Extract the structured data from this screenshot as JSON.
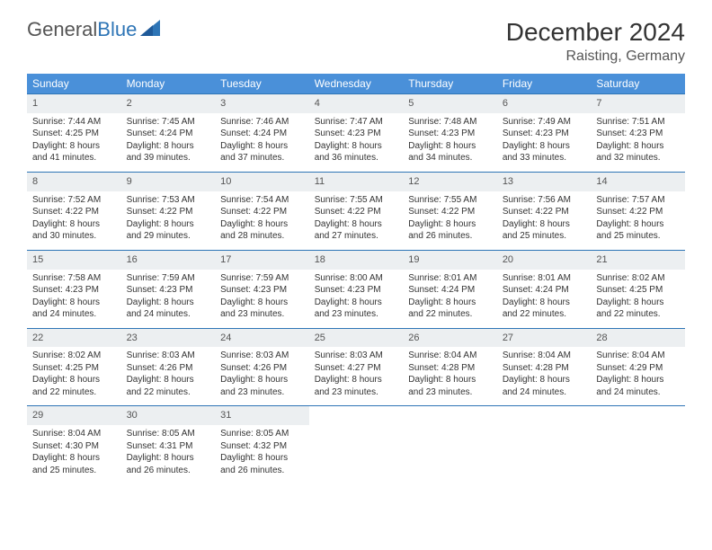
{
  "logo": {
    "text1": "General",
    "text2": "Blue"
  },
  "title": "December 2024",
  "location": "Raisting, Germany",
  "colors": {
    "header_bg": "#4a90d9",
    "header_text": "#ffffff",
    "daynum_bg": "#eceff1",
    "border": "#2e75b6",
    "logo_blue": "#2e75b6",
    "text": "#333333",
    "background": "#ffffff"
  },
  "days_of_week": [
    "Sunday",
    "Monday",
    "Tuesday",
    "Wednesday",
    "Thursday",
    "Friday",
    "Saturday"
  ],
  "layout": {
    "columns": 7,
    "rows": 5,
    "body_fontsize": 10,
    "header_fontsize": 12,
    "title_fontsize": 28,
    "location_fontsize": 16
  },
  "weeks": [
    [
      {
        "n": "1",
        "sr": "Sunrise: 7:44 AM",
        "ss": "Sunset: 4:25 PM",
        "dl1": "Daylight: 8 hours",
        "dl2": "and 41 minutes."
      },
      {
        "n": "2",
        "sr": "Sunrise: 7:45 AM",
        "ss": "Sunset: 4:24 PM",
        "dl1": "Daylight: 8 hours",
        "dl2": "and 39 minutes."
      },
      {
        "n": "3",
        "sr": "Sunrise: 7:46 AM",
        "ss": "Sunset: 4:24 PM",
        "dl1": "Daylight: 8 hours",
        "dl2": "and 37 minutes."
      },
      {
        "n": "4",
        "sr": "Sunrise: 7:47 AM",
        "ss": "Sunset: 4:23 PM",
        "dl1": "Daylight: 8 hours",
        "dl2": "and 36 minutes."
      },
      {
        "n": "5",
        "sr": "Sunrise: 7:48 AM",
        "ss": "Sunset: 4:23 PM",
        "dl1": "Daylight: 8 hours",
        "dl2": "and 34 minutes."
      },
      {
        "n": "6",
        "sr": "Sunrise: 7:49 AM",
        "ss": "Sunset: 4:23 PM",
        "dl1": "Daylight: 8 hours",
        "dl2": "and 33 minutes."
      },
      {
        "n": "7",
        "sr": "Sunrise: 7:51 AM",
        "ss": "Sunset: 4:23 PM",
        "dl1": "Daylight: 8 hours",
        "dl2": "and 32 minutes."
      }
    ],
    [
      {
        "n": "8",
        "sr": "Sunrise: 7:52 AM",
        "ss": "Sunset: 4:22 PM",
        "dl1": "Daylight: 8 hours",
        "dl2": "and 30 minutes."
      },
      {
        "n": "9",
        "sr": "Sunrise: 7:53 AM",
        "ss": "Sunset: 4:22 PM",
        "dl1": "Daylight: 8 hours",
        "dl2": "and 29 minutes."
      },
      {
        "n": "10",
        "sr": "Sunrise: 7:54 AM",
        "ss": "Sunset: 4:22 PM",
        "dl1": "Daylight: 8 hours",
        "dl2": "and 28 minutes."
      },
      {
        "n": "11",
        "sr": "Sunrise: 7:55 AM",
        "ss": "Sunset: 4:22 PM",
        "dl1": "Daylight: 8 hours",
        "dl2": "and 27 minutes."
      },
      {
        "n": "12",
        "sr": "Sunrise: 7:55 AM",
        "ss": "Sunset: 4:22 PM",
        "dl1": "Daylight: 8 hours",
        "dl2": "and 26 minutes."
      },
      {
        "n": "13",
        "sr": "Sunrise: 7:56 AM",
        "ss": "Sunset: 4:22 PM",
        "dl1": "Daylight: 8 hours",
        "dl2": "and 25 minutes."
      },
      {
        "n": "14",
        "sr": "Sunrise: 7:57 AM",
        "ss": "Sunset: 4:22 PM",
        "dl1": "Daylight: 8 hours",
        "dl2": "and 25 minutes."
      }
    ],
    [
      {
        "n": "15",
        "sr": "Sunrise: 7:58 AM",
        "ss": "Sunset: 4:23 PM",
        "dl1": "Daylight: 8 hours",
        "dl2": "and 24 minutes."
      },
      {
        "n": "16",
        "sr": "Sunrise: 7:59 AM",
        "ss": "Sunset: 4:23 PM",
        "dl1": "Daylight: 8 hours",
        "dl2": "and 24 minutes."
      },
      {
        "n": "17",
        "sr": "Sunrise: 7:59 AM",
        "ss": "Sunset: 4:23 PM",
        "dl1": "Daylight: 8 hours",
        "dl2": "and 23 minutes."
      },
      {
        "n": "18",
        "sr": "Sunrise: 8:00 AM",
        "ss": "Sunset: 4:23 PM",
        "dl1": "Daylight: 8 hours",
        "dl2": "and 23 minutes."
      },
      {
        "n": "19",
        "sr": "Sunrise: 8:01 AM",
        "ss": "Sunset: 4:24 PM",
        "dl1": "Daylight: 8 hours",
        "dl2": "and 22 minutes."
      },
      {
        "n": "20",
        "sr": "Sunrise: 8:01 AM",
        "ss": "Sunset: 4:24 PM",
        "dl1": "Daylight: 8 hours",
        "dl2": "and 22 minutes."
      },
      {
        "n": "21",
        "sr": "Sunrise: 8:02 AM",
        "ss": "Sunset: 4:25 PM",
        "dl1": "Daylight: 8 hours",
        "dl2": "and 22 minutes."
      }
    ],
    [
      {
        "n": "22",
        "sr": "Sunrise: 8:02 AM",
        "ss": "Sunset: 4:25 PM",
        "dl1": "Daylight: 8 hours",
        "dl2": "and 22 minutes."
      },
      {
        "n": "23",
        "sr": "Sunrise: 8:03 AM",
        "ss": "Sunset: 4:26 PM",
        "dl1": "Daylight: 8 hours",
        "dl2": "and 22 minutes."
      },
      {
        "n": "24",
        "sr": "Sunrise: 8:03 AM",
        "ss": "Sunset: 4:26 PM",
        "dl1": "Daylight: 8 hours",
        "dl2": "and 23 minutes."
      },
      {
        "n": "25",
        "sr": "Sunrise: 8:03 AM",
        "ss": "Sunset: 4:27 PM",
        "dl1": "Daylight: 8 hours",
        "dl2": "and 23 minutes."
      },
      {
        "n": "26",
        "sr": "Sunrise: 8:04 AM",
        "ss": "Sunset: 4:28 PM",
        "dl1": "Daylight: 8 hours",
        "dl2": "and 23 minutes."
      },
      {
        "n": "27",
        "sr": "Sunrise: 8:04 AM",
        "ss": "Sunset: 4:28 PM",
        "dl1": "Daylight: 8 hours",
        "dl2": "and 24 minutes."
      },
      {
        "n": "28",
        "sr": "Sunrise: 8:04 AM",
        "ss": "Sunset: 4:29 PM",
        "dl1": "Daylight: 8 hours",
        "dl2": "and 24 minutes."
      }
    ],
    [
      {
        "n": "29",
        "sr": "Sunrise: 8:04 AM",
        "ss": "Sunset: 4:30 PM",
        "dl1": "Daylight: 8 hours",
        "dl2": "and 25 minutes."
      },
      {
        "n": "30",
        "sr": "Sunrise: 8:05 AM",
        "ss": "Sunset: 4:31 PM",
        "dl1": "Daylight: 8 hours",
        "dl2": "and 26 minutes."
      },
      {
        "n": "31",
        "sr": "Sunrise: 8:05 AM",
        "ss": "Sunset: 4:32 PM",
        "dl1": "Daylight: 8 hours",
        "dl2": "and 26 minutes."
      },
      null,
      null,
      null,
      null
    ]
  ]
}
